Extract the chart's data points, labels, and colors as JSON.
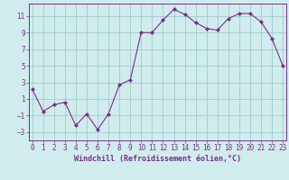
{
  "x": [
    0,
    1,
    2,
    3,
    4,
    5,
    6,
    7,
    8,
    9,
    10,
    11,
    12,
    13,
    14,
    15,
    16,
    17,
    18,
    19,
    20,
    21,
    22,
    23
  ],
  "y": [
    2.2,
    -0.5,
    0.3,
    0.6,
    -2.2,
    -0.8,
    -2.7,
    -0.8,
    2.7,
    3.3,
    9.0,
    9.0,
    10.5,
    11.8,
    11.2,
    10.2,
    9.5,
    9.3,
    10.7,
    11.3,
    11.3,
    10.3,
    8.3,
    5.0
  ],
  "line_color": "#7b2d8b",
  "marker": "D",
  "marker_size": 2.0,
  "bg_color": "#d0ecec",
  "grid_color": "#a0cccc",
  "xlabel": "Windchill (Refroidissement éolien,°C)",
  "xlabel_color": "#7b2d8b",
  "tick_color": "#7b2d8b",
  "ylim": [
    -4,
    12.5
  ],
  "yticks": [
    -3,
    -1,
    1,
    3,
    5,
    7,
    9,
    11
  ],
  "xticks": [
    0,
    1,
    2,
    3,
    4,
    5,
    6,
    7,
    8,
    9,
    10,
    11,
    12,
    13,
    14,
    15,
    16,
    17,
    18,
    19,
    20,
    21,
    22,
    23
  ],
  "xlim": [
    -0.3,
    23.3
  ],
  "font_family": "monospace",
  "tick_fontsize": 5.5,
  "xlabel_fontsize": 6.0
}
